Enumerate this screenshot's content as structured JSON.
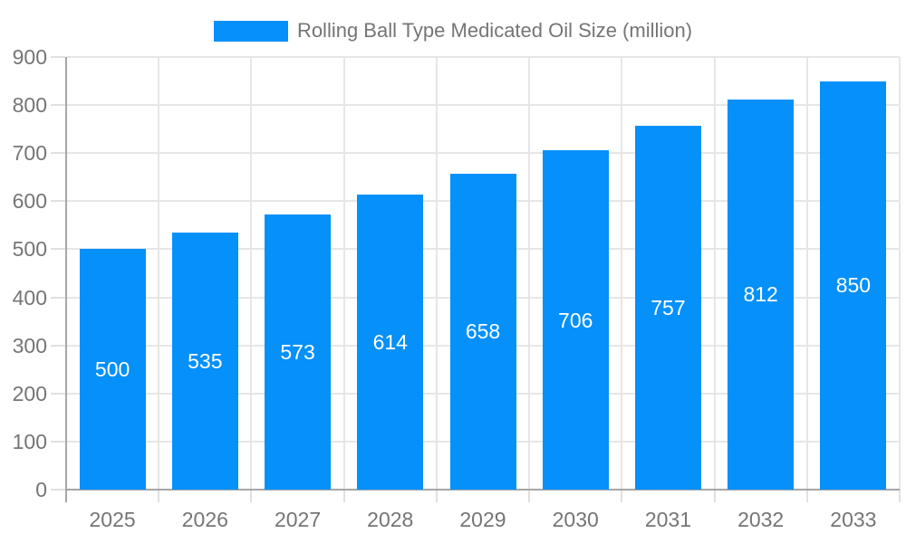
{
  "legend": {
    "label": "Rolling Ball Type Medicated Oil Size (million)"
  },
  "chart_data": {
    "type": "bar",
    "title": "Rolling Ball Type Medicated Oil Size (million)",
    "categories": [
      "2025",
      "2026",
      "2027",
      "2028",
      "2029",
      "2030",
      "2031",
      "2032",
      "2033"
    ],
    "values": [
      500,
      535,
      573,
      614,
      658,
      706,
      757,
      812,
      850
    ],
    "xlabel": "",
    "ylabel": "",
    "ylim": [
      0,
      900
    ],
    "yticks": [
      0,
      100,
      200,
      300,
      400,
      500,
      600,
      700,
      800,
      900
    ],
    "grid": true,
    "legend_position": "top",
    "colors": {
      "bar": "#0590fa",
      "bar_label": "#ffffff",
      "axis_text": "#757575",
      "gridline": "#e6e6e6",
      "axis_line": "#a6a6a6",
      "tick": "#e0e0e0",
      "background": "#ffffff"
    }
  }
}
